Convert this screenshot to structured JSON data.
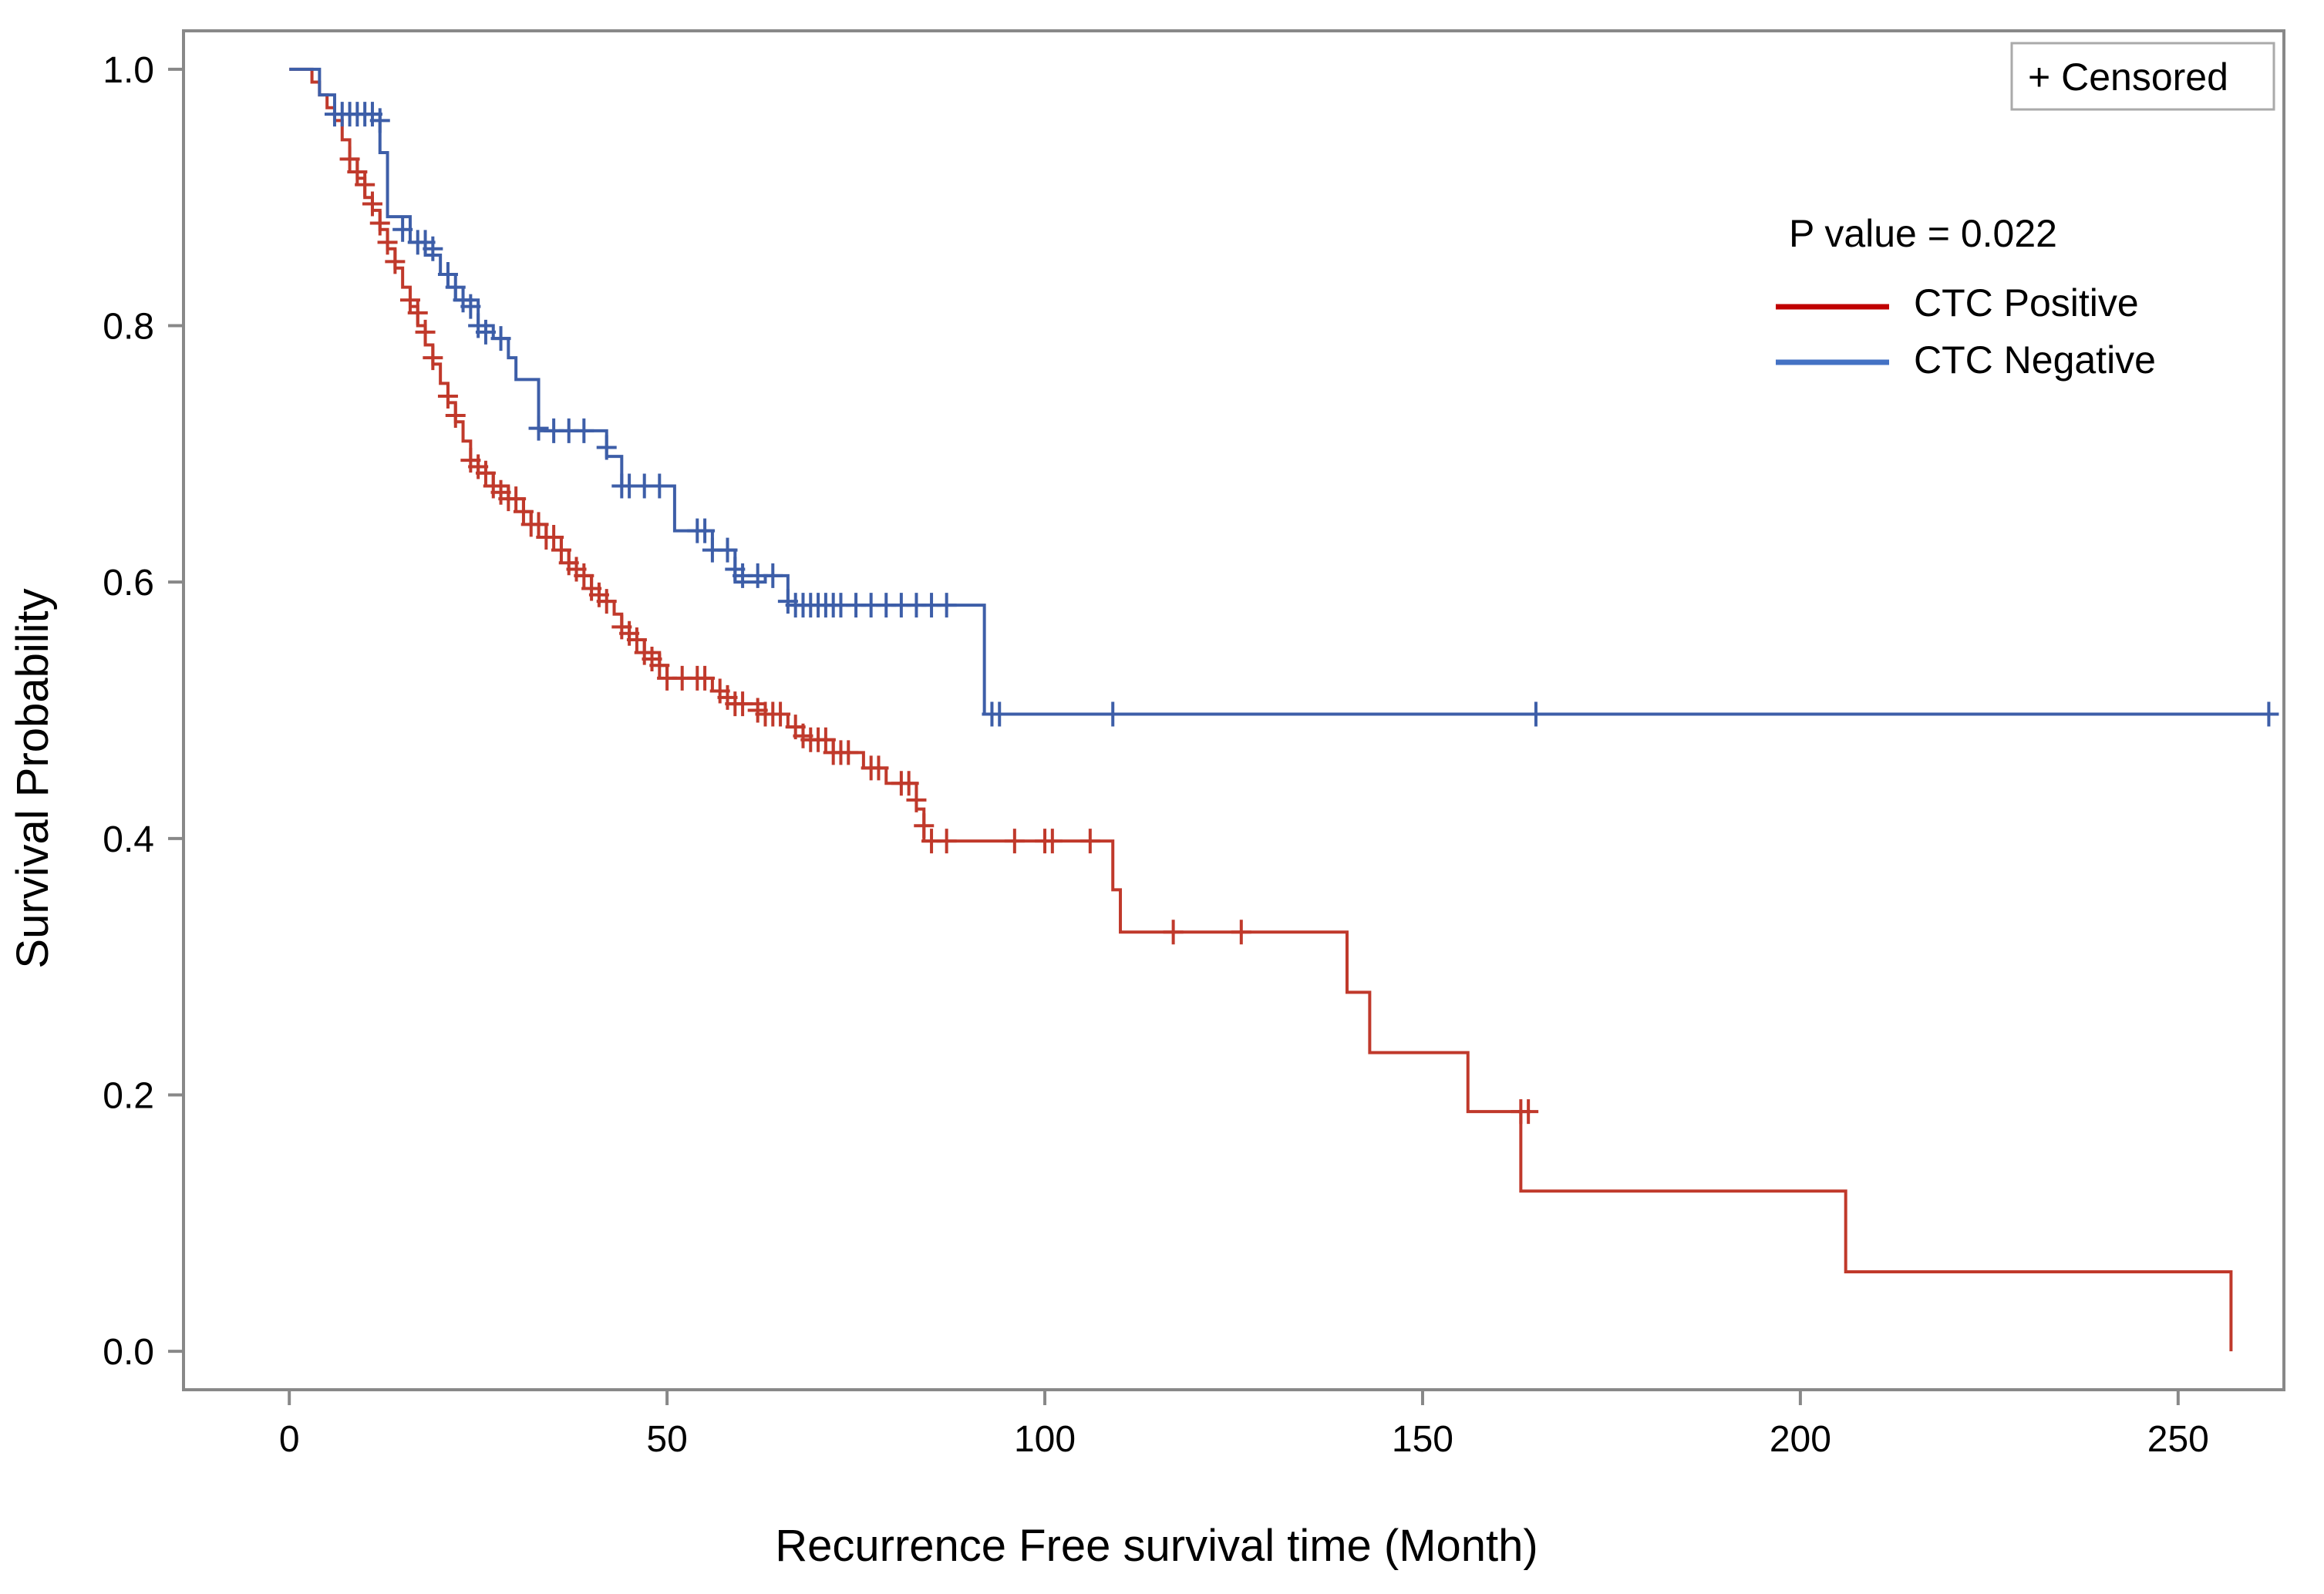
{
  "chart_data": {
    "type": "line",
    "subtype": "kaplan-meier",
    "xlabel": "Recurrence Free survival time (Month)",
    "ylabel": "Survival Probability",
    "xlim": [
      -14,
      264
    ],
    "ylim": [
      -0.03,
      1.03
    ],
    "xticks": [
      0,
      50,
      100,
      150,
      200,
      250
    ],
    "yticks": [
      0.0,
      0.2,
      0.4,
      0.6,
      0.8,
      1.0
    ],
    "ytick_labels": [
      "0.0",
      "0.2",
      "0.4",
      "0.6",
      "0.8",
      "1.0"
    ],
    "censor_legend": "+ Censored",
    "annotation": "P value = 0.022",
    "legend_position": "top-right",
    "series": [
      {
        "name": "CTC Positive",
        "color": "#c0392b",
        "legend_color": "#c00000",
        "steps": [
          [
            0,
            1.0
          ],
          [
            3,
            0.99
          ],
          [
            4,
            0.98
          ],
          [
            5,
            0.97
          ],
          [
            6,
            0.96
          ],
          [
            7,
            0.945
          ],
          [
            8,
            0.93
          ],
          [
            9,
            0.915
          ],
          [
            10,
            0.9
          ],
          [
            11,
            0.89
          ],
          [
            12,
            0.875
          ],
          [
            13,
            0.86
          ],
          [
            14,
            0.845
          ],
          [
            15,
            0.83
          ],
          [
            16,
            0.815
          ],
          [
            17,
            0.8
          ],
          [
            18,
            0.785
          ],
          [
            19,
            0.77
          ],
          [
            20,
            0.755
          ],
          [
            21,
            0.74
          ],
          [
            22,
            0.725
          ],
          [
            23,
            0.71
          ],
          [
            24,
            0.695
          ],
          [
            25,
            0.685
          ],
          [
            27,
            0.675
          ],
          [
            29,
            0.665
          ],
          [
            31,
            0.655
          ],
          [
            32,
            0.645
          ],
          [
            34,
            0.635
          ],
          [
            36,
            0.625
          ],
          [
            37,
            0.615
          ],
          [
            38,
            0.605
          ],
          [
            40,
            0.595
          ],
          [
            41,
            0.585
          ],
          [
            43,
            0.575
          ],
          [
            44,
            0.565
          ],
          [
            45,
            0.555
          ],
          [
            47,
            0.545
          ],
          [
            49,
            0.535
          ],
          [
            50,
            0.525
          ],
          [
            56,
            0.515
          ],
          [
            58,
            0.505
          ],
          [
            63,
            0.497
          ],
          [
            66,
            0.487
          ],
          [
            68,
            0.477
          ],
          [
            72,
            0.467
          ],
          [
            76,
            0.455
          ],
          [
            79,
            0.443
          ],
          [
            83,
            0.423
          ],
          [
            84,
            0.398
          ],
          [
            109,
            0.36
          ],
          [
            110,
            0.327
          ],
          [
            140,
            0.28
          ],
          [
            143,
            0.233
          ],
          [
            156,
            0.187
          ],
          [
            163,
            0.125
          ],
          [
            206,
            0.062
          ],
          [
            257,
            0.0
          ]
        ],
        "end_x": 257,
        "censored": [
          [
            8,
            0.93
          ],
          [
            9,
            0.92
          ],
          [
            10,
            0.91
          ],
          [
            11,
            0.895
          ],
          [
            12,
            0.88
          ],
          [
            13,
            0.865
          ],
          [
            14,
            0.85
          ],
          [
            16,
            0.82
          ],
          [
            17,
            0.81
          ],
          [
            18,
            0.795
          ],
          [
            19,
            0.775
          ],
          [
            21,
            0.745
          ],
          [
            22,
            0.73
          ],
          [
            24,
            0.695
          ],
          [
            25,
            0.69
          ],
          [
            26,
            0.685
          ],
          [
            27,
            0.675
          ],
          [
            28,
            0.67
          ],
          [
            29,
            0.665
          ],
          [
            30,
            0.665
          ],
          [
            31,
            0.655
          ],
          [
            32,
            0.645
          ],
          [
            33,
            0.645
          ],
          [
            34,
            0.635
          ],
          [
            35,
            0.635
          ],
          [
            36,
            0.625
          ],
          [
            37,
            0.615
          ],
          [
            38,
            0.61
          ],
          [
            39,
            0.605
          ],
          [
            40,
            0.595
          ],
          [
            41,
            0.59
          ],
          [
            42,
            0.585
          ],
          [
            44,
            0.565
          ],
          [
            45,
            0.56
          ],
          [
            46,
            0.555
          ],
          [
            47,
            0.545
          ],
          [
            48,
            0.54
          ],
          [
            49,
            0.535
          ],
          [
            50,
            0.525
          ],
          [
            52,
            0.525
          ],
          [
            54,
            0.525
          ],
          [
            55,
            0.525
          ],
          [
            57,
            0.515
          ],
          [
            58,
            0.51
          ],
          [
            59,
            0.505
          ],
          [
            60,
            0.505
          ],
          [
            62,
            0.5
          ],
          [
            63,
            0.497
          ],
          [
            64,
            0.497
          ],
          [
            65,
            0.497
          ],
          [
            67,
            0.487
          ],
          [
            68,
            0.48
          ],
          [
            69,
            0.477
          ],
          [
            70,
            0.477
          ],
          [
            71,
            0.477
          ],
          [
            72,
            0.467
          ],
          [
            73,
            0.467
          ],
          [
            74,
            0.467
          ],
          [
            77,
            0.455
          ],
          [
            78,
            0.455
          ],
          [
            81,
            0.443
          ],
          [
            82,
            0.443
          ],
          [
            83,
            0.43
          ],
          [
            84,
            0.41
          ],
          [
            85,
            0.398
          ],
          [
            87,
            0.398
          ],
          [
            96,
            0.398
          ],
          [
            100,
            0.398
          ],
          [
            101,
            0.398
          ],
          [
            106,
            0.398
          ],
          [
            117,
            0.327
          ],
          [
            126,
            0.327
          ],
          [
            163,
            0.187
          ],
          [
            164,
            0.187
          ]
        ]
      },
      {
        "name": "CTC Negative",
        "color": "#3d5ea8",
        "legend_color": "#4472c4",
        "steps": [
          [
            0,
            1.0
          ],
          [
            4,
            0.98
          ],
          [
            6,
            0.965
          ],
          [
            12,
            0.935
          ],
          [
            13,
            0.885
          ],
          [
            16,
            0.865
          ],
          [
            18,
            0.855
          ],
          [
            20,
            0.84
          ],
          [
            21,
            0.83
          ],
          [
            22,
            0.82
          ],
          [
            25,
            0.8
          ],
          [
            27,
            0.79
          ],
          [
            29,
            0.775
          ],
          [
            30,
            0.758
          ],
          [
            33,
            0.718
          ],
          [
            42,
            0.698
          ],
          [
            44,
            0.675
          ],
          [
            51,
            0.64
          ],
          [
            56,
            0.625
          ],
          [
            59,
            0.6
          ],
          [
            63,
            0.605
          ],
          [
            66,
            0.582
          ],
          [
            92,
            0.497
          ]
        ],
        "end_x": 262,
        "censored": [
          [
            6,
            0.965
          ],
          [
            7,
            0.965
          ],
          [
            8,
            0.965
          ],
          [
            9,
            0.965
          ],
          [
            10,
            0.965
          ],
          [
            11,
            0.965
          ],
          [
            12,
            0.96
          ],
          [
            15,
            0.875
          ],
          [
            17,
            0.865
          ],
          [
            18,
            0.865
          ],
          [
            19,
            0.86
          ],
          [
            21,
            0.84
          ],
          [
            22,
            0.83
          ],
          [
            23,
            0.82
          ],
          [
            24,
            0.815
          ],
          [
            25,
            0.8
          ],
          [
            26,
            0.795
          ],
          [
            28,
            0.79
          ],
          [
            33,
            0.72
          ],
          [
            35,
            0.718
          ],
          [
            37,
            0.718
          ],
          [
            39,
            0.718
          ],
          [
            42,
            0.705
          ],
          [
            44,
            0.675
          ],
          [
            45,
            0.675
          ],
          [
            47,
            0.675
          ],
          [
            49,
            0.675
          ],
          [
            54,
            0.64
          ],
          [
            55,
            0.64
          ],
          [
            56,
            0.625
          ],
          [
            58,
            0.625
          ],
          [
            59,
            0.61
          ],
          [
            60,
            0.605
          ],
          [
            62,
            0.605
          ],
          [
            64,
            0.605
          ],
          [
            66,
            0.585
          ],
          [
            67,
            0.582
          ],
          [
            68,
            0.582
          ],
          [
            69,
            0.582
          ],
          [
            70,
            0.582
          ],
          [
            71,
            0.582
          ],
          [
            72,
            0.582
          ],
          [
            73,
            0.582
          ],
          [
            75,
            0.582
          ],
          [
            77,
            0.582
          ],
          [
            79,
            0.582
          ],
          [
            81,
            0.582
          ],
          [
            83,
            0.582
          ],
          [
            85,
            0.582
          ],
          [
            87,
            0.582
          ],
          [
            93,
            0.497
          ],
          [
            94,
            0.497
          ],
          [
            109,
            0.497
          ],
          [
            165,
            0.497
          ],
          [
            262,
            0.497
          ]
        ]
      }
    ]
  }
}
